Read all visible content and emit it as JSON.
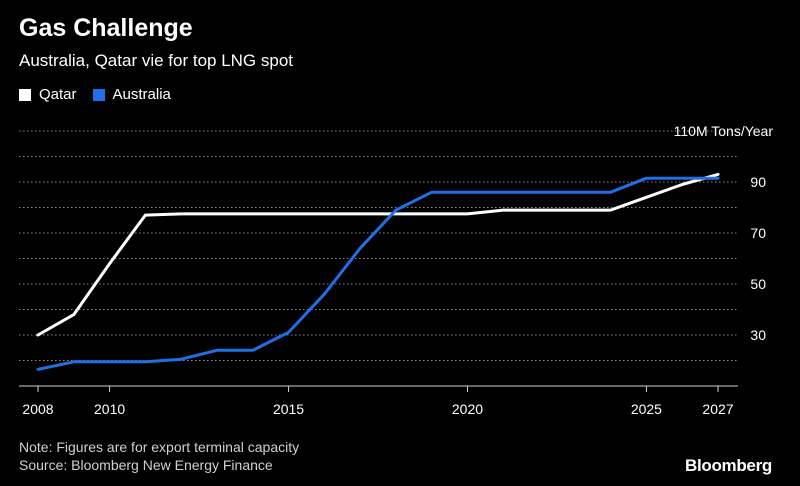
{
  "header": {
    "title": "Gas Challenge",
    "subtitle": "Australia, Qatar vie for top LNG spot"
  },
  "footer": {
    "note": "Note: Figures are for export terminal capacity",
    "source": "Source: Bloomberg New Energy Finance",
    "brand": "Bloomberg"
  },
  "chart_data": {
    "type": "line",
    "title": "Gas Challenge",
    "subtitle": "Australia, Qatar vie for top LNG spot",
    "ylabel": "110M Tons/Year",
    "xlabel": "",
    "xlim": [
      2008,
      2027
    ],
    "ylim": [
      10,
      110
    ],
    "x_ticks": [
      2008,
      2010,
      2015,
      2020,
      2025,
      2027
    ],
    "y_ticks": [
      30,
      50,
      70,
      90
    ],
    "y_tick_labels": [
      "30",
      "50",
      "70",
      "90"
    ],
    "y_top_label": "110M Tons/Year",
    "grid": true,
    "legend_position": "top-left",
    "series": [
      {
        "name": "Qatar",
        "color": "#ffffff",
        "x": [
          2008,
          2009,
          2010,
          2011,
          2012,
          2013,
          2014,
          2015,
          2016,
          2017,
          2018,
          2019,
          2020,
          2021,
          2022,
          2023,
          2024,
          2025,
          2026,
          2027
        ],
        "values": [
          30,
          38,
          58,
          77,
          77.5,
          77.5,
          77.5,
          77.5,
          77.5,
          77.5,
          77.5,
          77.5,
          77.5,
          79,
          79,
          79,
          79,
          84,
          89,
          93
        ]
      },
      {
        "name": "Australia",
        "color": "#1f6fe6",
        "x": [
          2008,
          2009,
          2010,
          2011,
          2012,
          2013,
          2014,
          2015,
          2016,
          2017,
          2018,
          2019,
          2020,
          2021,
          2022,
          2023,
          2024,
          2025,
          2026,
          2027
        ],
        "values": [
          16.5,
          19.5,
          19.5,
          19.5,
          20.5,
          24,
          24,
          31,
          46,
          64,
          79,
          86,
          86,
          86,
          86,
          86,
          86,
          91.5,
          91.5,
          91.5
        ]
      }
    ]
  }
}
